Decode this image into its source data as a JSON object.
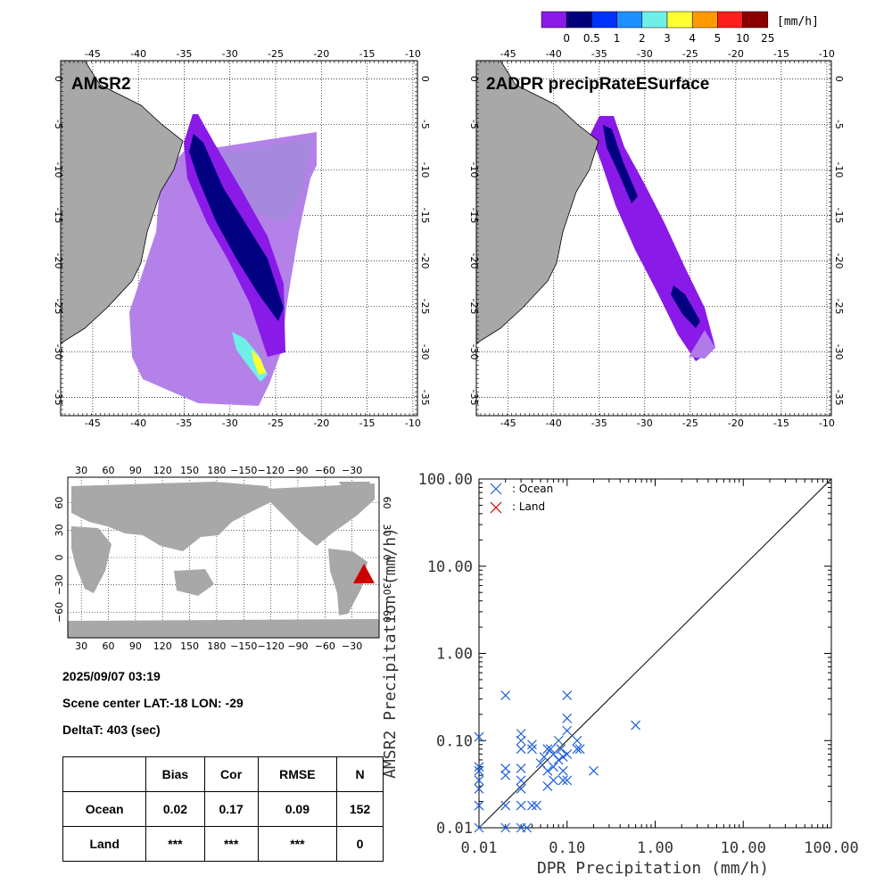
{
  "colorbar": {
    "unit": "[mm/h]",
    "labels": [
      "0",
      "0.5",
      "1",
      "2",
      "3",
      "4",
      "5",
      "10",
      "25"
    ],
    "colors": [
      "#8a1ae8",
      "#00007a",
      "#0032ff",
      "#1e90ff",
      "#6ef0e8",
      "#ffff32",
      "#ff9a00",
      "#ff1e1e",
      "#8a0000"
    ]
  },
  "map_amsr2": {
    "title": "AMSR2",
    "lon_ticks": [
      "-45",
      "-40",
      "-35",
      "-30",
      "-25",
      "-20",
      "-15",
      "-10"
    ],
    "lat_ticks": [
      "0",
      "-5",
      "-10",
      "-15",
      "-20",
      "-25",
      "-30",
      "-35"
    ]
  },
  "map_dpr": {
    "title": "2ADPR precipRateESurface",
    "lon_ticks": [
      "-45",
      "-40",
      "-35",
      "-30",
      "-25",
      "-20",
      "-15",
      "-10"
    ],
    "lat_ticks": [
      "0",
      "-5",
      "-10",
      "-15",
      "-20",
      "-25",
      "-30",
      "-35"
    ]
  },
  "world_map": {
    "lon_ticks": [
      "30",
      "60",
      "90",
      "120",
      "150",
      "180",
      "−150",
      "−120",
      "−90",
      "−60",
      "−30"
    ],
    "lat_ticks": [
      "60",
      "30",
      "0",
      "−30",
      "−60"
    ],
    "marker_color": "#cc0000"
  },
  "info": {
    "datetime": "2025/09/07 03:19",
    "scene_center": "Scene center LAT:-18   LON: -29",
    "delta_t": "DeltaT:  403 (sec)"
  },
  "stats_table": {
    "headers": [
      "",
      "Bias",
      "Cor",
      "RMSE",
      "N"
    ],
    "rows": [
      [
        "Ocean",
        "0.02",
        "0.17",
        "0.09",
        "152"
      ],
      [
        "Land",
        "***",
        "***",
        "***",
        "0"
      ]
    ]
  },
  "chart_data": {
    "type": "scatter",
    "xlabel": "DPR Precipitation (mm/h)",
    "ylabel": "AMSR2 Precipitation (mm/h)",
    "xscale": "log",
    "yscale": "log",
    "xlim": [
      0.01,
      100
    ],
    "ylim": [
      0.01,
      100
    ],
    "tick_labels": [
      "0.01",
      "0.10",
      "1.00",
      "10.00",
      "100.00"
    ],
    "reference_line": "y = x",
    "legend": "top-left",
    "series": [
      {
        "name": ": Ocean",
        "color": "#1e5fd8",
        "points": [
          [
            0.01,
            0.11
          ],
          [
            0.01,
            0.05
          ],
          [
            0.01,
            0.045
          ],
          [
            0.01,
            0.035
          ],
          [
            0.01,
            0.028
          ],
          [
            0.01,
            0.018
          ],
          [
            0.01,
            0.01
          ],
          [
            0.02,
            0.33
          ],
          [
            0.02,
            0.048
          ],
          [
            0.02,
            0.04
          ],
          [
            0.02,
            0.018
          ],
          [
            0.02,
            0.009
          ],
          [
            0.03,
            0.12
          ],
          [
            0.03,
            0.1
          ],
          [
            0.03,
            0.08
          ],
          [
            0.03,
            0.048
          ],
          [
            0.03,
            0.035
          ],
          [
            0.03,
            0.028
          ],
          [
            0.03,
            0.018
          ],
          [
            0.03,
            0.009
          ],
          [
            0.035,
            0.009
          ],
          [
            0.04,
            0.09
          ],
          [
            0.04,
            0.08
          ],
          [
            0.04,
            0.018
          ],
          [
            0.045,
            0.018
          ],
          [
            0.05,
            0.055
          ],
          [
            0.055,
            0.065
          ],
          [
            0.06,
            0.08
          ],
          [
            0.06,
            0.045
          ],
          [
            0.06,
            0.03
          ],
          [
            0.065,
            0.08
          ],
          [
            0.07,
            0.07
          ],
          [
            0.07,
            0.05
          ],
          [
            0.07,
            0.035
          ],
          [
            0.08,
            0.1
          ],
          [
            0.08,
            0.06
          ],
          [
            0.085,
            0.08
          ],
          [
            0.09,
            0.065
          ],
          [
            0.09,
            0.045
          ],
          [
            0.09,
            0.035
          ],
          [
            0.1,
            0.33
          ],
          [
            0.1,
            0.18
          ],
          [
            0.1,
            0.13
          ],
          [
            0.1,
            0.07
          ],
          [
            0.1,
            0.035
          ],
          [
            0.13,
            0.1
          ],
          [
            0.13,
            0.08
          ],
          [
            0.14,
            0.08
          ],
          [
            0.2,
            0.045
          ],
          [
            0.6,
            0.15
          ]
        ]
      },
      {
        "name": ": Land",
        "color": "#cc0000",
        "points": []
      }
    ]
  }
}
